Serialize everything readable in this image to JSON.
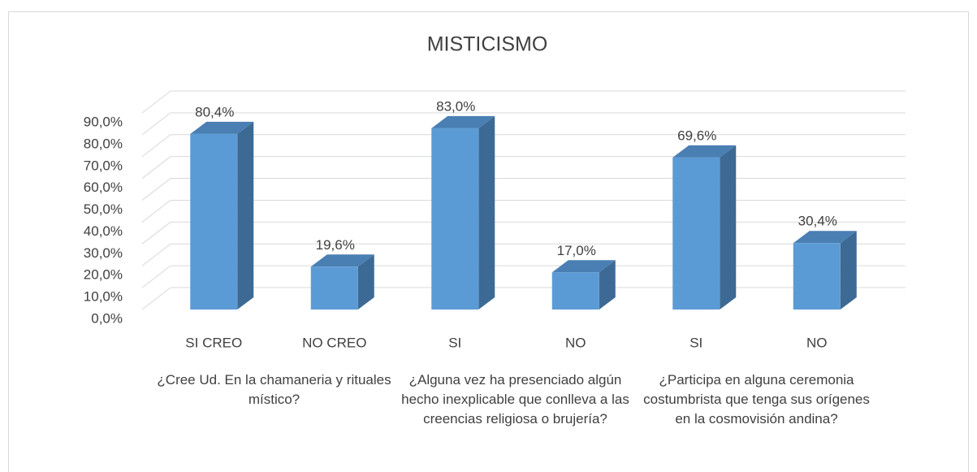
{
  "chart_data": {
    "type": "bar3d",
    "title": "MISTICISMO",
    "categories": [
      "SI CREO",
      "NO CREO",
      "SI",
      "NO",
      "SI",
      "NO"
    ],
    "groups": [
      "¿Cree Ud. En la chamaneria y rituales místico?",
      "¿Alguna vez ha presenciado algún hecho inexplicable que conlleva a las creencias religiosa o brujería?",
      "¿Participa en alguna ceremonia costumbrista que tenga sus orígenes en  la cosmovisión andina?"
    ],
    "values": [
      80.4,
      19.6,
      83.0,
      17.0,
      69.6,
      30.4
    ],
    "value_labels": [
      "80,4%",
      "19,6%",
      "83,0%",
      "17,0%",
      "69,6%",
      "30,4%"
    ],
    "color": "#5b9bd5",
    "ylim": [
      0,
      90
    ],
    "yticks": [
      {
        "value": 0,
        "label": "0,0%"
      },
      {
        "value": 10,
        "label": "10,0%"
      },
      {
        "value": 20,
        "label": "20,0%"
      },
      {
        "value": 30,
        "label": "30,0%"
      },
      {
        "value": 40,
        "label": "40,0%"
      },
      {
        "value": 50,
        "label": "50,0%"
      },
      {
        "value": 60,
        "label": "60,0%"
      },
      {
        "value": 70,
        "label": "70,0%"
      },
      {
        "value": 80,
        "label": "80,0%"
      },
      {
        "value": 90,
        "label": "90,0%"
      }
    ],
    "grid": true
  }
}
